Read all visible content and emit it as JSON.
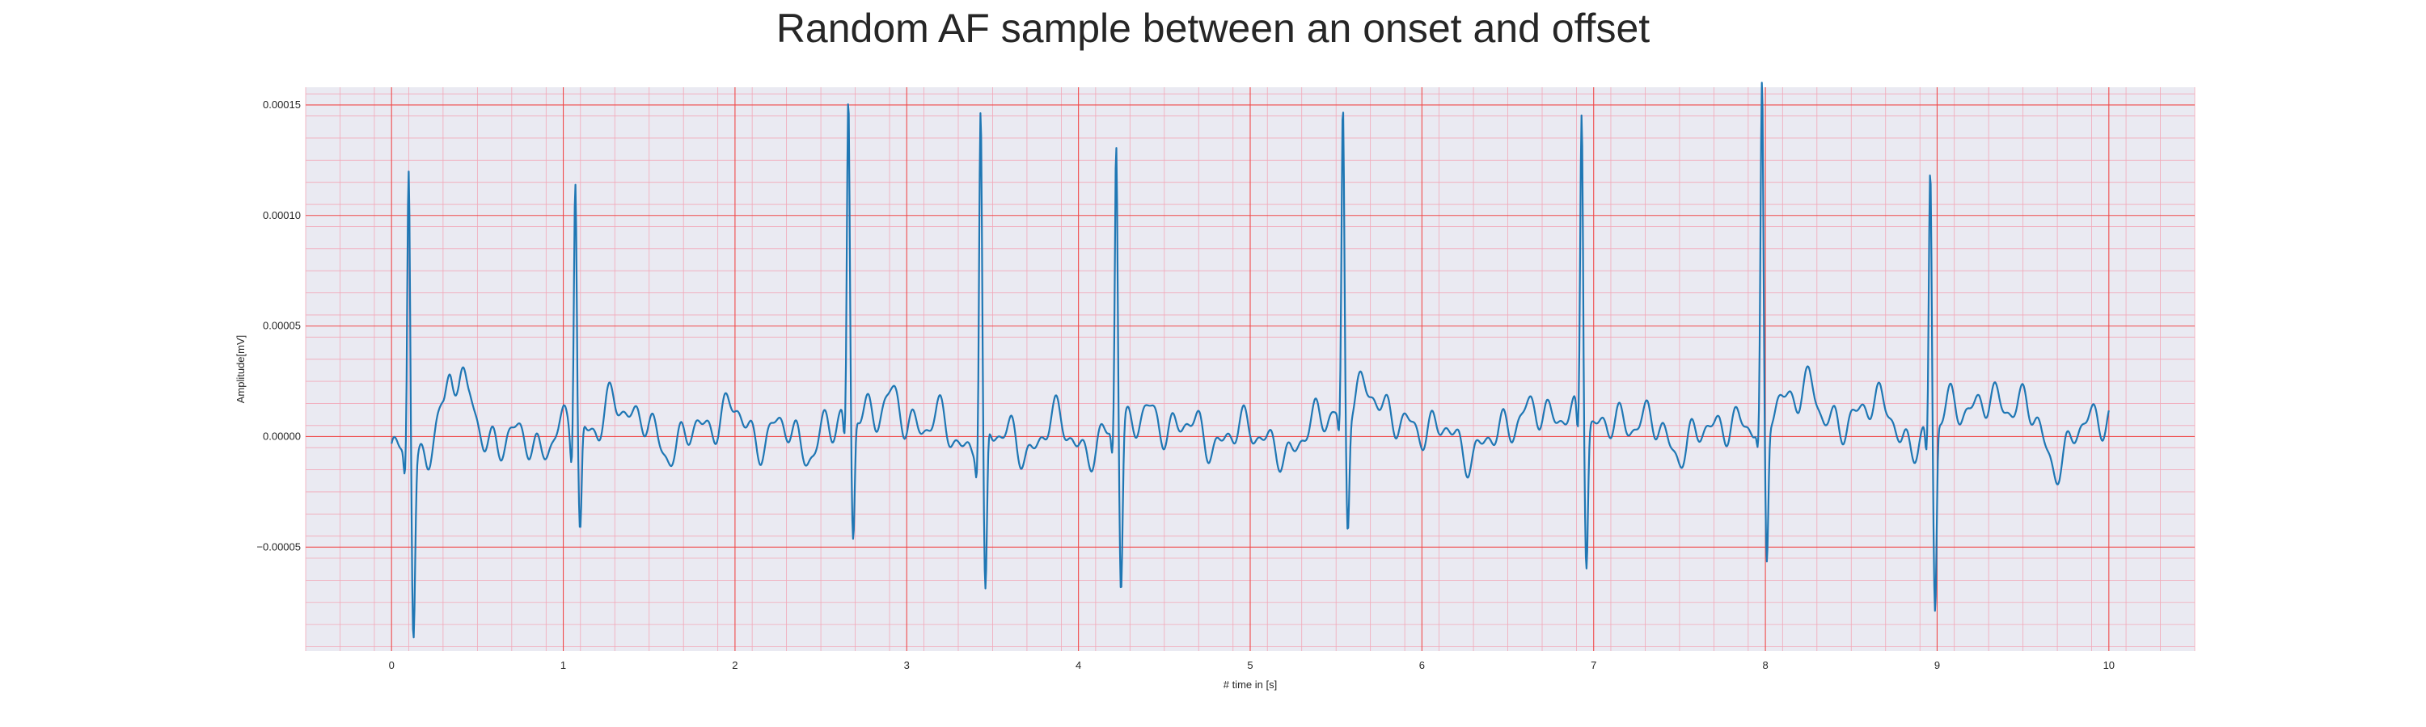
{
  "colors": {
    "background": "#ffffff",
    "plot_background": "#eaeaf2",
    "major_grid": "#f04a4a",
    "minor_grid": "#f2a8b8",
    "line": "#1f77b4",
    "text": "#262626"
  },
  "chart_data": {
    "type": "line",
    "title": "Random AF sample between an onset and offset",
    "xlabel": "# time in [s]",
    "ylabel": "Amplitude[mV]",
    "xlim": [
      -0.5,
      10.5
    ],
    "ylim": [
      -9.7e-05,
      0.000158
    ],
    "xticks": [
      0,
      1,
      2,
      3,
      4,
      5,
      6,
      7,
      8,
      9,
      10
    ],
    "xtick_labels": [
      "0",
      "1",
      "2",
      "3",
      "4",
      "5",
      "6",
      "7",
      "8",
      "9",
      "10"
    ],
    "yticks": [
      -5e-05,
      0.0,
      5e-05,
      0.0001,
      0.00015
    ],
    "ytick_labels": [
      "−0.00005",
      "0.00000",
      "0.00005",
      "0.00010",
      "0.00015"
    ],
    "grid": "major red, minor light pink",
    "series": [
      {
        "color": "#1f77b4",
        "r_peaks": [
          {
            "t": 0.1,
            "peak": 0.000133,
            "trough": -7.5e-05
          },
          {
            "t": 1.07,
            "peak": 0.000117,
            "trough": -4.9e-05
          },
          {
            "t": 2.66,
            "peak": 0.000145,
            "trough": -5.7e-05
          },
          {
            "t": 3.43,
            "peak": 0.000145,
            "trough": -8e-05
          },
          {
            "t": 4.22,
            "peak": 0.000131,
            "trough": -7.2e-05
          },
          {
            "t": 5.54,
            "peak": 0.000134,
            "trough": -5.4e-05
          },
          {
            "t": 6.93,
            "peak": 0.000145,
            "trough": -6e-05
          },
          {
            "t": 7.98,
            "peak": 0.000146,
            "trough": -6.8e-05
          },
          {
            "t": 8.96,
            "peak": 0.000119,
            "trough": -8.5e-05
          }
        ],
        "x": [
          0.0,
          0.2,
          0.3,
          0.35,
          0.4,
          0.45,
          0.55,
          0.7,
          0.85,
          1.0,
          1.2,
          1.3,
          1.45,
          1.6,
          1.8,
          2.0,
          2.15,
          2.3,
          2.45,
          2.55,
          2.8,
          2.9,
          3.0,
          3.2,
          3.3,
          3.6,
          3.7,
          3.85,
          4.0,
          4.4,
          4.5,
          4.6,
          4.8,
          5.0,
          5.2,
          5.35,
          5.7,
          5.9,
          6.1,
          6.3,
          6.5,
          6.7,
          6.85,
          7.1,
          7.3,
          7.5,
          7.7,
          7.85,
          8.1,
          8.25,
          8.35,
          8.5,
          8.7,
          8.8,
          9.1,
          9.3,
          9.5,
          9.7,
          9.9,
          10.0
        ],
        "y": [
          -8e-06,
          -1e-05,
          1.2e-05,
          2.5e-05,
          3.3e-05,
          1.8e-05,
          -5e-06,
          2e-06,
          -6e-06,
          4e-06,
          4e-06,
          1.6e-05,
          8e-06,
          -6e-06,
          4e-06,
          1.2e-05,
          -3e-06,
          6e-06,
          -1e-05,
          8e-06,
          1e-05,
          1.9e-05,
          5e-06,
          8e-06,
          -4e-06,
          4e-06,
          -1.2e-05,
          1.1e-05,
          -6e-06,
          1e-05,
          3e-06,
          7e-06,
          -3e-06,
          5e-06,
          -1e-05,
          6e-06,
          2e-05,
          4e-06,
          4e-06,
          -8e-06,
          6e-06,
          1.2e-05,
          8e-06,
          5e-06,
          8e-06,
          -6e-06,
          6e-06,
          4e-06,
          1.4e-05,
          2.5e-05,
          6e-06,
          8e-06,
          1.8e-05,
          -6e-06,
          1.3e-05,
          1.5e-05,
          1.5e-05,
          -1.2e-05,
          1e-05,
          7e-06
        ]
      }
    ]
  }
}
